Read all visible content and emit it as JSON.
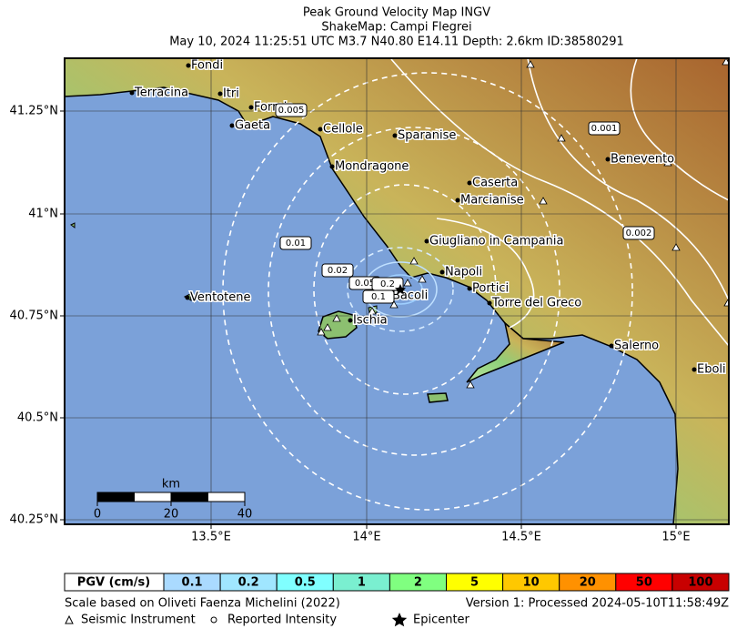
{
  "title": [
    "Peak Ground Velocity Map INGV",
    "ShakeMap: Campi Flegrei",
    "May 10, 2024 11:25:51 UTC M3.7 N40.80 E14.11 Depth: 2.6km ID:38580291"
  ],
  "lat_labels": [
    "41.25°N",
    "41°N",
    "40.75°N",
    "40.5°N",
    "40.25°N"
  ],
  "lon_labels": [
    "13.5°E",
    "14°E",
    "14.5°E",
    "15°E"
  ],
  "cities": [
    "Fondi",
    "Itri",
    "Terracina",
    "Formia",
    "Gaeta",
    "Cellole",
    "Sparanise",
    "Mondragone",
    "Caserta",
    "Marcianise",
    "Benevento",
    "Giugliano in Campania",
    "Napoli",
    "Portici",
    "Torre del Greco",
    "Bacoli",
    "Ischia",
    "Ventotene",
    "Salerno",
    "Eboli"
  ],
  "contour_labels": [
    "0.005",
    "0.001",
    "0.002",
    "0.01",
    "0.02",
    "0.05",
    "0.2",
    "0.1"
  ],
  "scale_bar": {
    "unit": "km",
    "ticks": [
      "0",
      "20",
      "40"
    ]
  },
  "legend": {
    "header": "PGV (cm/s)",
    "levels": [
      "0.1",
      "0.2",
      "0.5",
      "1",
      "2",
      "5",
      "10",
      "20",
      "50",
      "100"
    ]
  },
  "footer": {
    "scale_note": "Scale based on Oliveti Faenza Michelini (2022)",
    "version": "Version 1: Processed 2024-05-10T11:58:49Z",
    "instrument": "Seismic Instrument",
    "intensity": "Reported Intensity",
    "epicenter": "Epicenter"
  }
}
